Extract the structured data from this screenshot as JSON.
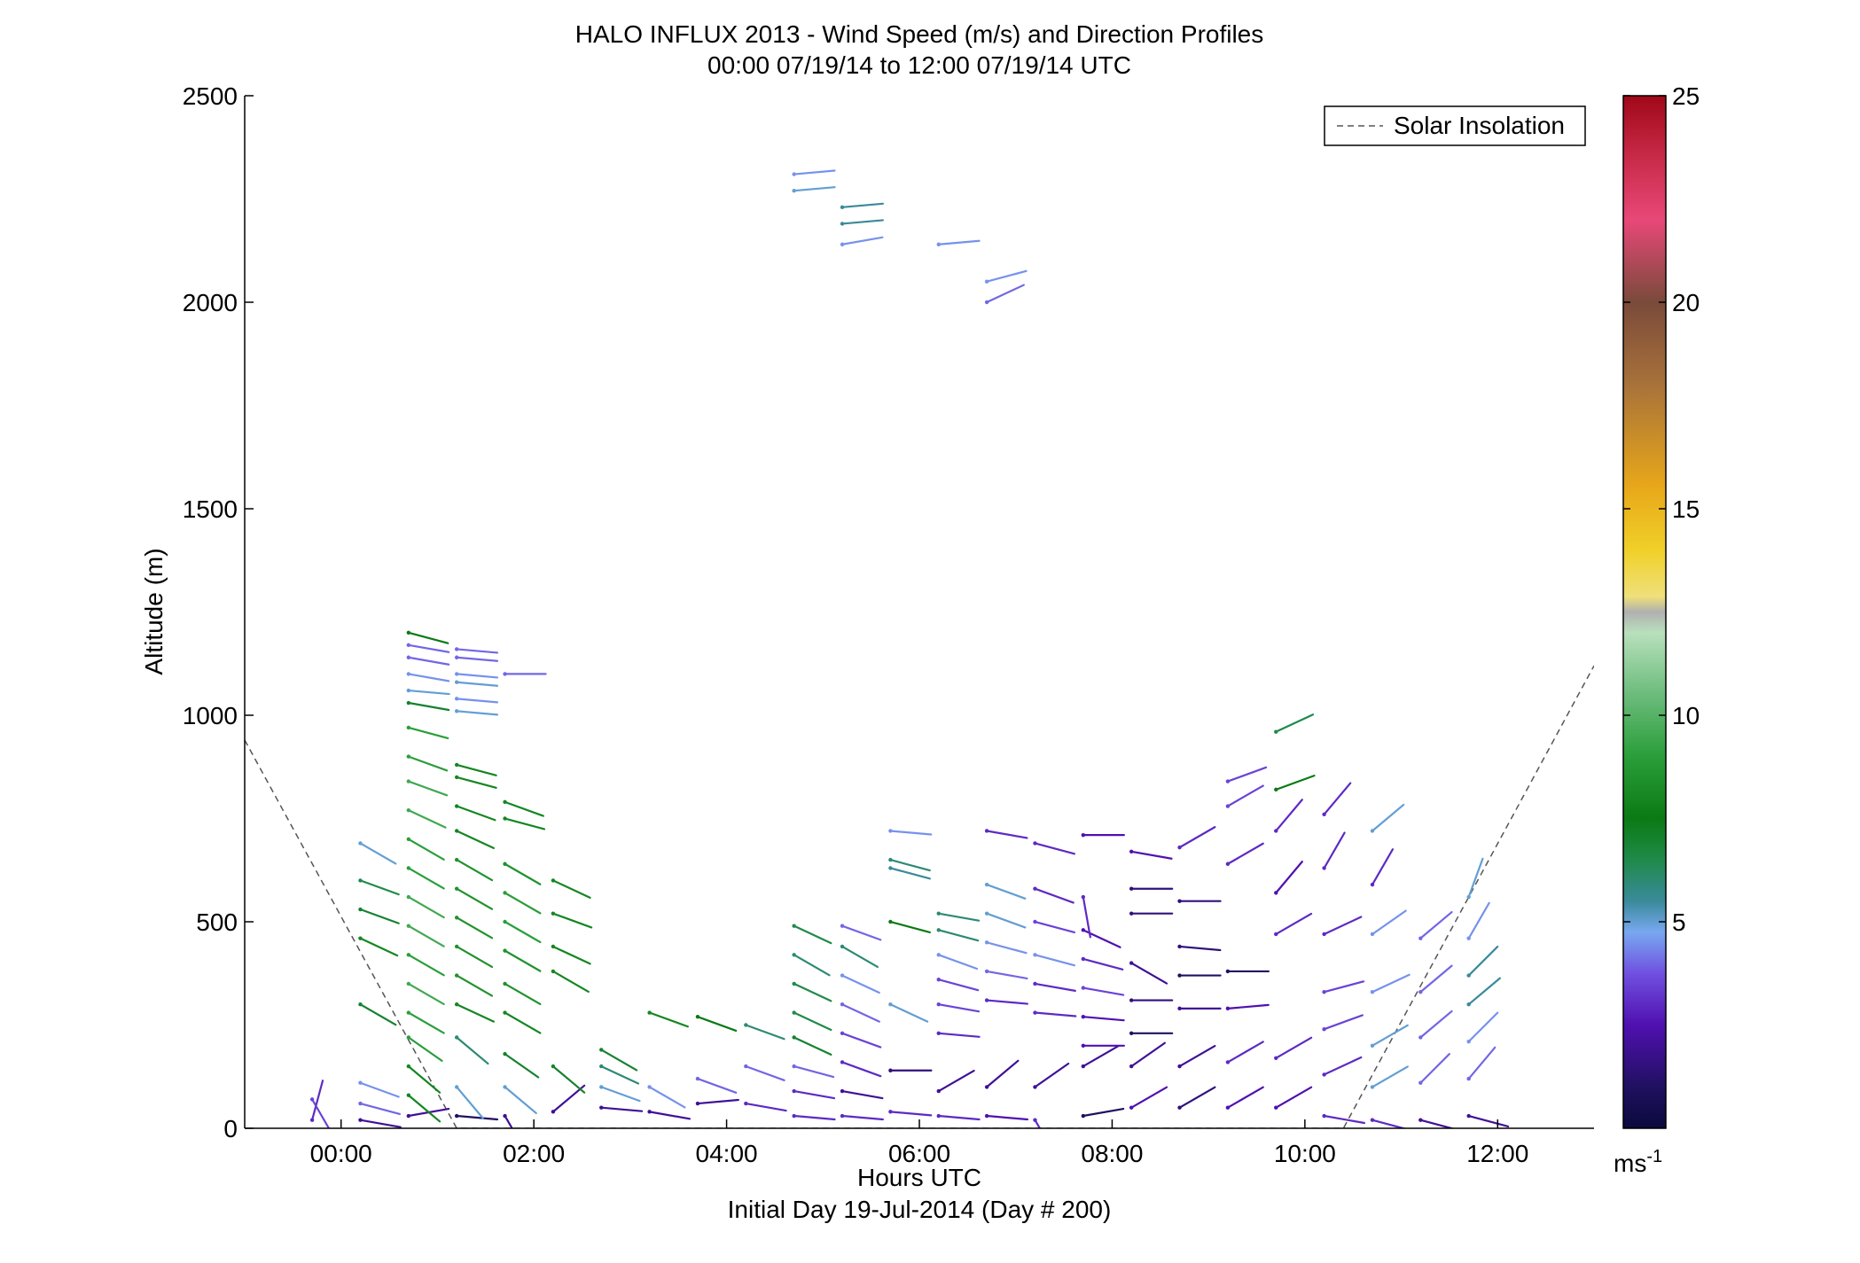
{
  "chart_data": {
    "type": "scatter",
    "title": "HALO INFLUX 2013 - Wind Speed (m/s) and Direction Profiles",
    "subtitle": "00:00 07/19/14 to 12:00 07/19/14  UTC",
    "xlabel": "Hours UTC",
    "xlabel2": "Initial Day 19-Jul-2014 (Day # 200)",
    "ylabel": "Altitude (m)",
    "xlim": [
      -1.0,
      13.0
    ],
    "ylim": [
      0,
      2500
    ],
    "xticks": [
      0,
      2,
      4,
      6,
      8,
      10,
      12
    ],
    "xticklabels": [
      "00:00",
      "02:00",
      "04:00",
      "06:00",
      "08:00",
      "10:00",
      "12:00"
    ],
    "yticks": [
      0,
      500,
      1000,
      1500,
      2000,
      2500
    ],
    "yticklabels": [
      "0",
      "500",
      "1000",
      "1500",
      "2000",
      "2500"
    ],
    "colorbar": {
      "range": [
        0,
        25
      ],
      "ticks": [
        5,
        10,
        15,
        20,
        25
      ],
      "ticklabels": [
        "5",
        "10",
        "15",
        "20",
        "25"
      ],
      "unit_label": "ms",
      "unit_exponent": "-1"
    },
    "legend": {
      "position": "top-right",
      "entries": [
        "Solar Insolation"
      ]
    },
    "solar_insolation": [
      {
        "x": -1.0,
        "y": 940
      },
      {
        "x": 1.2,
        "y": 0
      },
      {
        "x": 10.4,
        "y": 0
      },
      {
        "x": 13.0,
        "y": 1120
      }
    ],
    "wind_profiles": [
      {
        "time": -0.3,
        "points": [
          [
            20,
            3.0,
            15
          ],
          [
            70,
            3.5,
            150
          ]
        ]
      },
      {
        "time": 0.2,
        "points": [
          [
            20,
            2.0,
            100
          ],
          [
            60,
            4.0,
            105
          ],
          [
            110,
            4.5,
            110
          ],
          [
            300,
            7.0,
            120
          ],
          [
            460,
            8.0,
            115
          ],
          [
            530,
            7.0,
            110
          ],
          [
            600,
            6.5,
            110
          ],
          [
            690,
            5.0,
            120
          ]
        ]
      },
      {
        "time": 0.7,
        "points": [
          [
            30,
            2.0,
            80
          ],
          [
            80,
            8.0,
            130
          ],
          [
            150,
            8.0,
            130
          ],
          [
            220,
            9.0,
            125
          ],
          [
            280,
            9.0,
            120
          ],
          [
            350,
            9.5,
            120
          ],
          [
            420,
            9.0,
            120
          ],
          [
            490,
            9.5,
            120
          ],
          [
            560,
            9.5,
            120
          ],
          [
            630,
            9.0,
            120
          ],
          [
            700,
            9.0,
            120
          ],
          [
            770,
            9.5,
            115
          ],
          [
            840,
            9.5,
            110
          ],
          [
            900,
            9.0,
            110
          ],
          [
            970,
            9.0,
            105
          ],
          [
            1030,
            7.0,
            100
          ],
          [
            1060,
            5.0,
            95
          ],
          [
            1100,
            4.5,
            100
          ],
          [
            1140,
            4.0,
            100
          ],
          [
            1170,
            4.0,
            100
          ],
          [
            1200,
            7.5,
            105
          ]
        ]
      },
      {
        "time": 1.2,
        "points": [
          [
            30,
            1.0,
            95
          ],
          [
            100,
            5.0,
            140
          ],
          [
            220,
            6.0,
            130
          ],
          [
            300,
            8.0,
            115
          ],
          [
            370,
            8.5,
            120
          ],
          [
            440,
            8.5,
            120
          ],
          [
            510,
            8.5,
            120
          ],
          [
            580,
            8.5,
            120
          ],
          [
            650,
            8.5,
            120
          ],
          [
            720,
            8.0,
            115
          ],
          [
            780,
            8.0,
            110
          ],
          [
            850,
            8.0,
            105
          ],
          [
            880,
            8.0,
            105
          ],
          [
            1010,
            5.0,
            95
          ],
          [
            1040,
            4.5,
            95
          ],
          [
            1080,
            5.0,
            95
          ],
          [
            1100,
            4.5,
            95
          ],
          [
            1140,
            4.0,
            95
          ],
          [
            1160,
            4.0,
            95
          ]
        ]
      },
      {
        "time": 1.7,
        "points": [
          [
            30,
            2.0,
            150
          ],
          [
            100,
            5.0,
            130
          ],
          [
            180,
            7.0,
            125
          ],
          [
            280,
            8.0,
            120
          ],
          [
            350,
            8.5,
            120
          ],
          [
            430,
            8.5,
            120
          ],
          [
            500,
            9.0,
            120
          ],
          [
            570,
            9.0,
            120
          ],
          [
            640,
            8.5,
            120
          ],
          [
            750,
            8.0,
            105
          ],
          [
            790,
            8.0,
            110
          ],
          [
            1100,
            4.0,
            90
          ]
        ]
      },
      {
        "time": 2.2,
        "points": [
          [
            40,
            2.0,
            50
          ],
          [
            150,
            7.0,
            130
          ],
          [
            380,
            8.0,
            120
          ],
          [
            440,
            8.0,
            115
          ],
          [
            520,
            8.0,
            110
          ],
          [
            600,
            8.0,
            115
          ]
        ]
      },
      {
        "time": 2.7,
        "points": [
          [
            50,
            2.0,
            95
          ],
          [
            100,
            5.0,
            110
          ],
          [
            150,
            6.0,
            115
          ],
          [
            190,
            7.0,
            120
          ]
        ]
      },
      {
        "time": 3.2,
        "points": [
          [
            40,
            2.0,
            100
          ],
          [
            100,
            4.5,
            120
          ],
          [
            280,
            8.0,
            110
          ]
        ]
      },
      {
        "time": 3.7,
        "points": [
          [
            60,
            2.0,
            85
          ],
          [
            120,
            4.0,
            110
          ],
          [
            270,
            7.5,
            110
          ]
        ]
      },
      {
        "time": 4.2,
        "points": [
          [
            60,
            3.0,
            100
          ],
          [
            150,
            4.0,
            110
          ],
          [
            250,
            6.0,
            110
          ]
        ]
      },
      {
        "time": 4.7,
        "points": [
          [
            30,
            3.0,
            95
          ],
          [
            90,
            3.0,
            100
          ],
          [
            150,
            4.0,
            105
          ],
          [
            220,
            7.0,
            115
          ],
          [
            280,
            6.5,
            115
          ],
          [
            350,
            6.5,
            115
          ],
          [
            420,
            6.0,
            120
          ],
          [
            490,
            6.5,
            115
          ],
          [
            2270,
            5.0,
            85
          ],
          [
            2310,
            4.5,
            85
          ]
        ]
      },
      {
        "time": 5.2,
        "points": [
          [
            30,
            3.0,
            95
          ],
          [
            90,
            2.0,
            100
          ],
          [
            160,
            3.0,
            110
          ],
          [
            230,
            3.5,
            110
          ],
          [
            300,
            4.0,
            115
          ],
          [
            370,
            4.5,
            115
          ],
          [
            440,
            6.0,
            120
          ],
          [
            490,
            4.0,
            110
          ],
          [
            2140,
            4.5,
            80
          ],
          [
            2190,
            5.5,
            85
          ],
          [
            2230,
            5.5,
            85
          ]
        ]
      },
      {
        "time": 5.7,
        "points": [
          [
            40,
            3.0,
            95
          ],
          [
            140,
            1.5,
            90
          ],
          [
            300,
            5.0,
            115
          ],
          [
            500,
            7.5,
            105
          ],
          [
            630,
            5.5,
            105
          ],
          [
            650,
            6.0,
            105
          ],
          [
            720,
            4.5,
            95
          ]
        ]
      },
      {
        "time": 6.2,
        "points": [
          [
            30,
            3.0,
            95
          ],
          [
            90,
            2.0,
            60
          ],
          [
            230,
            3.0,
            95
          ],
          [
            300,
            3.5,
            100
          ],
          [
            360,
            3.5,
            105
          ],
          [
            420,
            4.5,
            110
          ],
          [
            480,
            6.0,
            105
          ],
          [
            520,
            6.0,
            100
          ],
          [
            2140,
            4.5,
            85
          ]
        ]
      },
      {
        "time": 6.7,
        "points": [
          [
            30,
            2.5,
            95
          ],
          [
            100,
            2.0,
            50
          ],
          [
            310,
            3.0,
            95
          ],
          [
            380,
            4.0,
            100
          ],
          [
            450,
            4.5,
            105
          ],
          [
            520,
            5.0,
            110
          ],
          [
            590,
            5.0,
            110
          ],
          [
            720,
            3.0,
            100
          ],
          [
            2000,
            4.0,
            65
          ],
          [
            2050,
            4.5,
            75
          ]
        ]
      },
      {
        "time": 7.2,
        "points": [
          [
            20,
            3.0,
            150
          ],
          [
            100,
            2.0,
            55
          ],
          [
            280,
            3.0,
            95
          ],
          [
            350,
            3.0,
            100
          ],
          [
            420,
            4.5,
            105
          ],
          [
            500,
            3.5,
            105
          ],
          [
            580,
            3.0,
            110
          ],
          [
            690,
            3.0,
            105
          ]
        ]
      },
      {
        "time": 7.7,
        "points": [
          [
            30,
            1.0,
            80
          ],
          [
            150,
            2.0,
            60
          ],
          [
            200,
            2.5,
            90
          ],
          [
            270,
            2.5,
            95
          ],
          [
            340,
            3.5,
            100
          ],
          [
            410,
            3.0,
            105
          ],
          [
            480,
            2.5,
            115
          ],
          [
            560,
            3.0,
            170
          ],
          [
            710,
            2.5,
            90
          ]
        ]
      },
      {
        "time": 8.2,
        "points": [
          [
            50,
            2.5,
            60
          ],
          [
            150,
            2.0,
            55
          ],
          [
            230,
            1.0,
            90
          ],
          [
            310,
            1.5,
            90
          ],
          [
            400,
            2.0,
            120
          ],
          [
            520,
            1.5,
            90
          ],
          [
            580,
            1.5,
            90
          ],
          [
            670,
            2.5,
            100
          ]
        ]
      },
      {
        "time": 8.7,
        "points": [
          [
            50,
            1.5,
            60
          ],
          [
            150,
            2.0,
            60
          ],
          [
            290,
            2.0,
            90
          ],
          [
            370,
            1.0,
            90
          ],
          [
            440,
            1.5,
            95
          ],
          [
            550,
            1.5,
            90
          ],
          [
            680,
            3.0,
            60
          ]
        ]
      },
      {
        "time": 9.2,
        "points": [
          [
            50,
            2.5,
            60
          ],
          [
            160,
            3.0,
            60
          ],
          [
            290,
            2.5,
            85
          ],
          [
            380,
            1.0,
            90
          ],
          [
            640,
            3.0,
            60
          ],
          [
            780,
            3.5,
            60
          ],
          [
            840,
            3.5,
            70
          ]
        ]
      },
      {
        "time": 9.7,
        "points": [
          [
            50,
            2.5,
            60
          ],
          [
            170,
            3.0,
            60
          ],
          [
            470,
            3.0,
            60
          ],
          [
            570,
            2.5,
            40
          ],
          [
            720,
            3.0,
            40
          ],
          [
            820,
            7.5,
            70
          ],
          [
            960,
            6.5,
            65
          ]
        ]
      },
      {
        "time": 10.2,
        "points": [
          [
            30,
            3.0,
            100
          ],
          [
            130,
            3.0,
            65
          ],
          [
            240,
            3.5,
            70
          ],
          [
            330,
            3.5,
            75
          ],
          [
            470,
            3.0,
            65
          ],
          [
            630,
            3.0,
            30
          ],
          [
            760,
            3.0,
            40
          ]
        ]
      },
      {
        "time": 10.7,
        "points": [
          [
            20,
            3.0,
            105
          ],
          [
            100,
            5.0,
            60
          ],
          [
            200,
            5.0,
            60
          ],
          [
            330,
            4.5,
            65
          ],
          [
            470,
            4.5,
            55
          ],
          [
            590,
            3.0,
            30
          ],
          [
            720,
            5.0,
            50
          ]
        ]
      },
      {
        "time": 11.2,
        "points": [
          [
            20,
            2.0,
            105
          ],
          [
            110,
            4.0,
            45
          ],
          [
            220,
            4.0,
            50
          ],
          [
            330,
            4.0,
            50
          ],
          [
            460,
            4.0,
            50
          ]
        ]
      },
      {
        "time": 11.7,
        "points": [
          [
            30,
            2.0,
            105
          ],
          [
            120,
            4.0,
            40
          ],
          [
            210,
            4.5,
            45
          ],
          [
            300,
            5.5,
            50
          ],
          [
            370,
            5.5,
            45
          ],
          [
            460,
            4.5,
            30
          ],
          [
            560,
            5.0,
            20
          ]
        ]
      }
    ]
  }
}
